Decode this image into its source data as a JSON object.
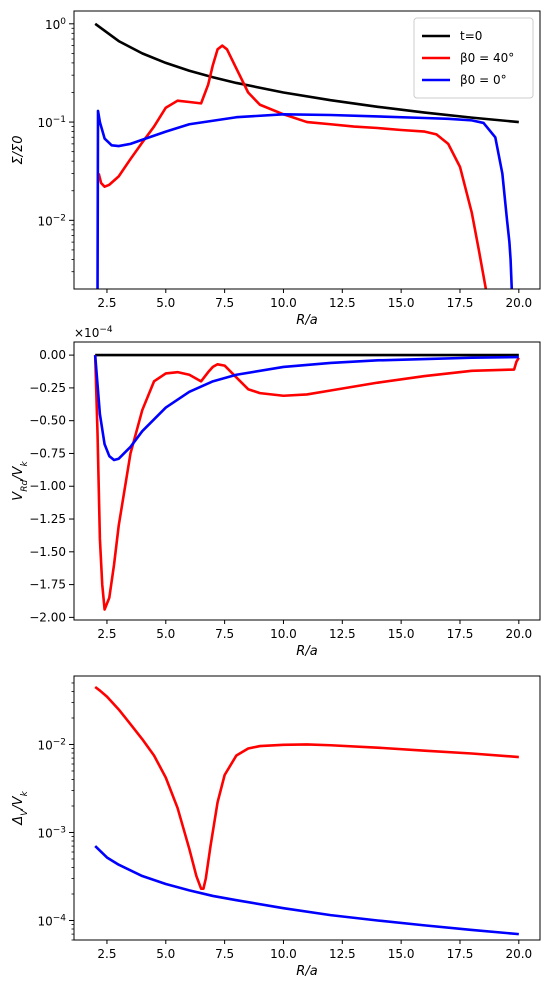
{
  "chart_data": [
    {
      "type": "line",
      "xlabel": "R/a",
      "ylabel": "Σ/Σ0",
      "yscale": "log",
      "xlim": [
        1.1,
        20.9
      ],
      "ylim": [
        0.002,
        1.35
      ],
      "x_ticks": [
        "2.5",
        "5.0",
        "7.5",
        "10.0",
        "12.5",
        "15.0",
        "17.5",
        "20.0"
      ],
      "y_ticks": [
        "10^0",
        "10^-1",
        "10^-2"
      ],
      "legend": {
        "position": "top-right",
        "entries": [
          "t=0",
          "β0 = 40°",
          "β0 = 0°"
        ]
      },
      "series": [
        {
          "name": "t=0",
          "color": "#000000",
          "x": [
            2.0,
            3.0,
            4.0,
            5.0,
            6.0,
            7.0,
            8.0,
            10.0,
            12.0,
            14.0,
            16.0,
            18.0,
            20.0
          ],
          "y": [
            1.0,
            0.667,
            0.5,
            0.4,
            0.333,
            0.286,
            0.25,
            0.2,
            0.167,
            0.143,
            0.125,
            0.111,
            0.1
          ]
        },
        {
          "name": "β0 = 40°",
          "color": "#ff0000",
          "x": [
            2.15,
            2.25,
            2.4,
            2.6,
            3.0,
            3.5,
            4.0,
            4.5,
            5.0,
            5.5,
            6.0,
            6.5,
            6.8,
            7.0,
            7.2,
            7.4,
            7.6,
            8.0,
            8.5,
            9.0,
            10.0,
            11.0,
            12.0,
            13.0,
            14.0,
            15.0,
            16.0,
            16.5,
            17.0,
            17.5,
            18.0,
            18.3,
            18.6
          ],
          "y": [
            0.03,
            0.024,
            0.022,
            0.023,
            0.028,
            0.042,
            0.062,
            0.09,
            0.14,
            0.165,
            0.16,
            0.155,
            0.24,
            0.38,
            0.55,
            0.6,
            0.55,
            0.35,
            0.2,
            0.15,
            0.12,
            0.1,
            0.095,
            0.09,
            0.087,
            0.083,
            0.08,
            0.075,
            0.06,
            0.035,
            0.012,
            0.005,
            0.002
          ]
        },
        {
          "name": "β0 = 0°",
          "color": "#0000ff",
          "x": [
            2.1,
            2.12,
            2.2,
            2.4,
            2.7,
            3.0,
            3.5,
            4.0,
            5.0,
            6.0,
            8.0,
            10.0,
            12.0,
            14.0,
            16.0,
            17.0,
            18.0,
            18.5,
            19.0,
            19.3,
            19.5,
            19.6,
            19.65,
            19.7
          ],
          "y": [
            0.002,
            0.13,
            0.1,
            0.068,
            0.058,
            0.057,
            0.06,
            0.066,
            0.08,
            0.095,
            0.112,
            0.12,
            0.118,
            0.114,
            0.11,
            0.108,
            0.104,
            0.098,
            0.07,
            0.03,
            0.01,
            0.006,
            0.004,
            0.002
          ]
        }
      ]
    },
    {
      "type": "line",
      "xlabel": "R/a",
      "ylabel": "V_Rd/V_k",
      "exponent_label": "×10^-4",
      "xlim": [
        1.1,
        20.9
      ],
      "ylim": [
        -2.02,
        0.1
      ],
      "x_ticks": [
        "2.5",
        "5.0",
        "7.5",
        "10.0",
        "12.5",
        "15.0",
        "17.5",
        "20.0"
      ],
      "y_ticks": [
        "0.00",
        "−0.25",
        "−0.50",
        "−0.75",
        "−1.00",
        "−1.25",
        "−1.50",
        "−1.75",
        "−2.00"
      ],
      "series": [
        {
          "name": "t=0",
          "color": "#000000",
          "x": [
            2.0,
            20.0
          ],
          "y": [
            0.0,
            0.0
          ]
        },
        {
          "name": "β0 = 40°",
          "color": "#ff0000",
          "x": [
            2.0,
            2.1,
            2.2,
            2.3,
            2.4,
            2.6,
            2.8,
            3.0,
            3.5,
            4.0,
            4.5,
            5.0,
            5.5,
            6.0,
            6.5,
            6.8,
            7.0,
            7.2,
            7.5,
            8.0,
            8.5,
            9.0,
            10.0,
            11.0,
            12.0,
            14.0,
            16.0,
            18.0,
            19.8,
            19.9,
            20.0
          ],
          "y": [
            0.0,
            -0.6,
            -1.4,
            -1.75,
            -1.94,
            -1.85,
            -1.6,
            -1.3,
            -0.75,
            -0.42,
            -0.2,
            -0.14,
            -0.13,
            -0.15,
            -0.2,
            -0.13,
            -0.09,
            -0.07,
            -0.08,
            -0.17,
            -0.26,
            -0.29,
            -0.31,
            -0.3,
            -0.27,
            -0.21,
            -0.16,
            -0.12,
            -0.11,
            -0.05,
            -0.02
          ]
        },
        {
          "name": "β0 = 0°",
          "color": "#0000ff",
          "x": [
            2.0,
            2.2,
            2.4,
            2.6,
            2.8,
            3.0,
            3.5,
            4.0,
            5.0,
            6.0,
            7.0,
            8.0,
            10.0,
            12.0,
            14.0,
            16.0,
            18.0,
            20.0
          ],
          "y": [
            0.0,
            -0.45,
            -0.68,
            -0.77,
            -0.8,
            -0.79,
            -0.7,
            -0.58,
            -0.4,
            -0.28,
            -0.2,
            -0.15,
            -0.09,
            -0.06,
            -0.04,
            -0.03,
            -0.02,
            -0.015
          ]
        }
      ]
    },
    {
      "type": "line",
      "xlabel": "R/a",
      "ylabel": "Δ_V/V_k",
      "yscale": "log",
      "xlim": [
        1.1,
        20.9
      ],
      "ylim": [
        6e-05,
        0.06
      ],
      "x_ticks": [
        "2.5",
        "5.0",
        "7.5",
        "10.0",
        "12.5",
        "15.0",
        "17.5",
        "20.0"
      ],
      "y_ticks": [
        "10^-2",
        "10^-3",
        "10^-4"
      ],
      "series": [
        {
          "name": "β0 = 40°",
          "color": "#ff0000",
          "x": [
            2.0,
            2.2,
            2.5,
            3.0,
            3.5,
            4.0,
            4.5,
            5.0,
            5.5,
            6.0,
            6.3,
            6.5,
            6.6,
            6.7,
            6.9,
            7.2,
            7.5,
            8.0,
            8.5,
            9.0,
            10.0,
            11.0,
            12.0,
            14.0,
            16.0,
            18.0,
            20.0
          ],
          "y": [
            0.045,
            0.041,
            0.035,
            0.025,
            0.017,
            0.0115,
            0.0075,
            0.0042,
            0.0019,
            0.00065,
            0.00032,
            0.00023,
            0.00023,
            0.0003,
            0.0007,
            0.0022,
            0.0045,
            0.0075,
            0.009,
            0.0096,
            0.0099,
            0.01,
            0.0098,
            0.0092,
            0.0085,
            0.0079,
            0.0072
          ]
        },
        {
          "name": "β0 = 0°",
          "color": "#0000ff",
          "x": [
            2.0,
            2.5,
            3.0,
            4.0,
            5.0,
            6.0,
            7.0,
            8.0,
            10.0,
            12.0,
            14.0,
            16.0,
            18.0,
            20.0
          ],
          "y": [
            0.0007,
            0.00052,
            0.00043,
            0.00032,
            0.00026,
            0.00022,
            0.00019,
            0.00017,
            0.000138,
            0.000115,
            0.0001,
            8.8e-05,
            7.8e-05,
            7e-05
          ]
        }
      ]
    }
  ]
}
